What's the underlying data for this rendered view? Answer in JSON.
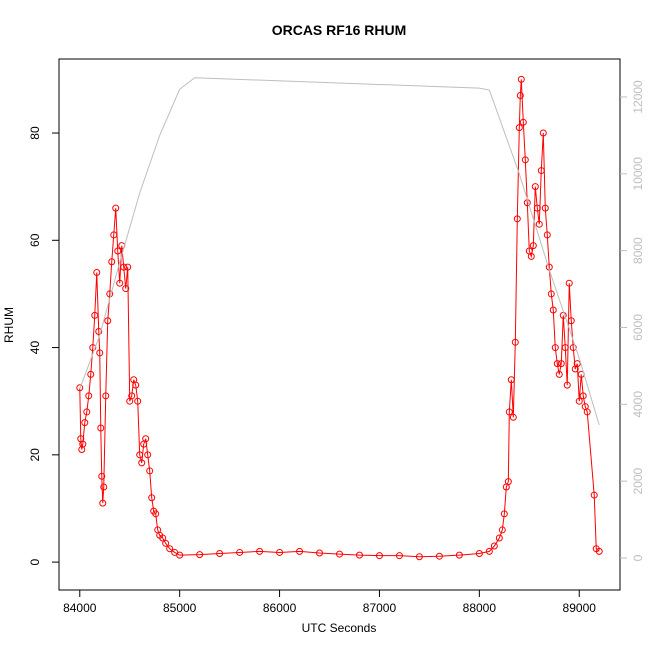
{
  "chart_data": {
    "type": "line",
    "title": "ORCAS RF16 RHUM",
    "xlabel": "UTC Seconds",
    "ylabel": "RHUM",
    "xlim": [
      83792,
      89408
    ],
    "xticks": [
      84000,
      85000,
      86000,
      87000,
      88000,
      89000
    ],
    "ylim": [
      -5.2,
      93.8
    ],
    "yticks": [
      0,
      20,
      40,
      60,
      80
    ],
    "y2lim": [
      -833,
      12988
    ],
    "y2ticks": [
      0,
      2000,
      4000,
      6000,
      8000,
      10000,
      12000
    ],
    "series": [
      {
        "color": "#ff0000",
        "markers": true,
        "x": [
          84000,
          84010,
          84020,
          84030,
          84050,
          84070,
          84090,
          84110,
          84130,
          84150,
          84170,
          84190,
          84200,
          84210,
          84220,
          84230,
          84240,
          84260,
          84280,
          84300,
          84320,
          84340,
          84360,
          84380,
          84400,
          84420,
          84440,
          84460,
          84480,
          84500,
          84520,
          84540,
          84560,
          84580,
          84600,
          84620,
          84640,
          84660,
          84680,
          84700,
          84720,
          84740,
          84760,
          84780,
          84800,
          84830,
          84860,
          84900,
          84950,
          85000,
          85200,
          85400,
          85600,
          85800,
          86000,
          86200,
          86400,
          86600,
          86800,
          87000,
          87200,
          87400,
          87600,
          87800,
          88000,
          88100,
          88150,
          88200,
          88230,
          88250,
          88270,
          88290,
          88300,
          88320,
          88340,
          88360,
          88380,
          88400,
          88410,
          88420,
          88440,
          88460,
          88480,
          88500,
          88520,
          88540,
          88560,
          88580,
          88600,
          88620,
          88640,
          88660,
          88680,
          88700,
          88720,
          88740,
          88760,
          88780,
          88800,
          88820,
          88840,
          88860,
          88880,
          88900,
          88920,
          88940,
          88960,
          88980,
          89000,
          89020,
          89040,
          89060,
          89080,
          89150,
          89170,
          89200
        ],
        "values": [
          32.5,
          23,
          21,
          22,
          26,
          28,
          31,
          35,
          40,
          46,
          54,
          43,
          39,
          25,
          16,
          11,
          14,
          31,
          45,
          50,
          56,
          61,
          66,
          58,
          52,
          59,
          55,
          51,
          55,
          30,
          31,
          34,
          33,
          30,
          20,
          18.5,
          22,
          23,
          20,
          17,
          12,
          9.5,
          9,
          6,
          5,
          4.5,
          3.5,
          2.5,
          1.8,
          1.3,
          1.4,
          1.6,
          1.8,
          2.0,
          1.8,
          2.0,
          1.7,
          1.5,
          1.3,
          1.2,
          1.2,
          1.0,
          1.1,
          1.3,
          1.6,
          2.0,
          3,
          4.5,
          6,
          9,
          14,
          15,
          28,
          34,
          27,
          41,
          64,
          81,
          87,
          90,
          82,
          75,
          67,
          58,
          57,
          59,
          70,
          66,
          63,
          73,
          80,
          66,
          61,
          55,
          50,
          47,
          40,
          37,
          35,
          37,
          46,
          40,
          33,
          52,
          45,
          40,
          36,
          37,
          30,
          35,
          31,
          29,
          28,
          12.5,
          2.5,
          2.0
        ]
      },
      {
        "color": "#bebebe",
        "axis": "y2",
        "markers": false,
        "x": [
          84000,
          84200,
          84400,
          84600,
          84800,
          85000,
          85150,
          88000,
          88100,
          88400,
          88700,
          89000,
          89200
        ],
        "values": [
          4400,
          5800,
          7700,
          9500,
          11000,
          12200,
          12500,
          12230,
          12180,
          10000,
          7500,
          5200,
          3460
        ]
      }
    ]
  }
}
